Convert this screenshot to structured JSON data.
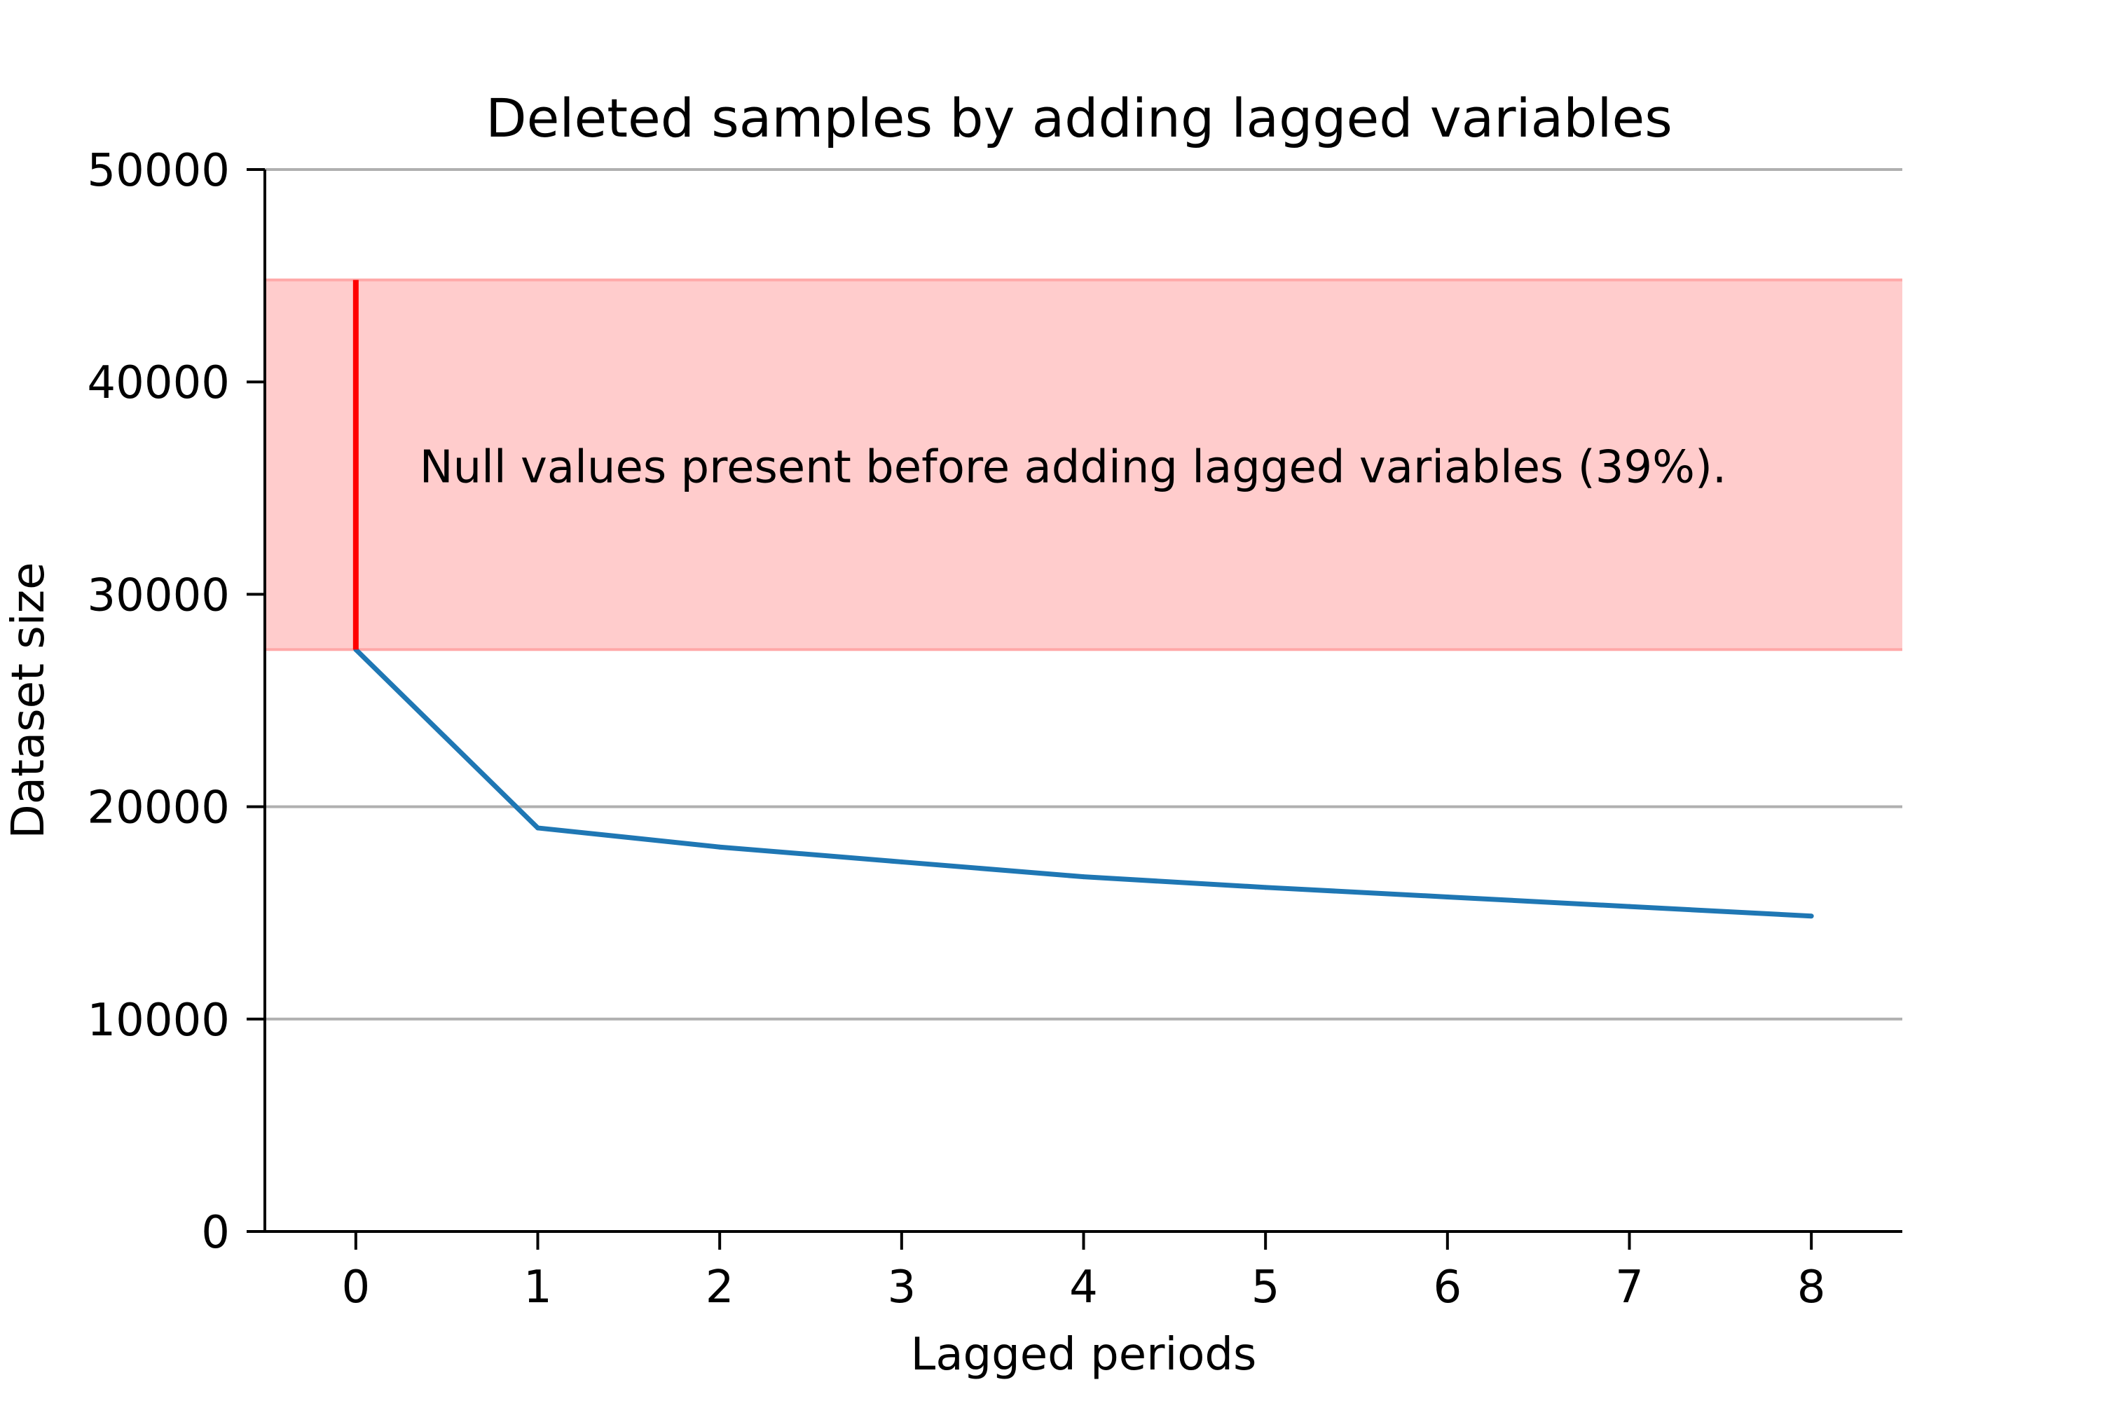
{
  "chart_data": {
    "type": "line",
    "title": "Deleted samples by adding lagged variables",
    "xlabel": "Lagged periods",
    "ylabel": "Dataset size",
    "xlim": [
      -0.5,
      8.5
    ],
    "ylim": [
      0,
      50000
    ],
    "xticks": [
      0,
      1,
      2,
      3,
      4,
      5,
      6,
      7,
      8
    ],
    "yticks": [
      0,
      10000,
      20000,
      30000,
      40000,
      50000
    ],
    "grid": "horizontal",
    "series": [
      {
        "x": [
          0,
          1,
          2,
          3,
          4,
          5,
          6,
          7,
          8
        ],
        "values": [
          27400,
          19000,
          18100,
          17400,
          16700,
          16200,
          15750,
          15300,
          14850
        ],
        "color": "#1f77b4"
      }
    ],
    "band": {
      "y_from": 27400,
      "y_to": 44800,
      "color": "#ffcccc"
    },
    "marker_line": {
      "x": 0,
      "y_from": 27400,
      "y_to": 44800,
      "color": "#ff0000"
    },
    "annotation": {
      "text": "Null values present before adding lagged variables (39%).",
      "x": 0.35,
      "y": 36000
    }
  }
}
